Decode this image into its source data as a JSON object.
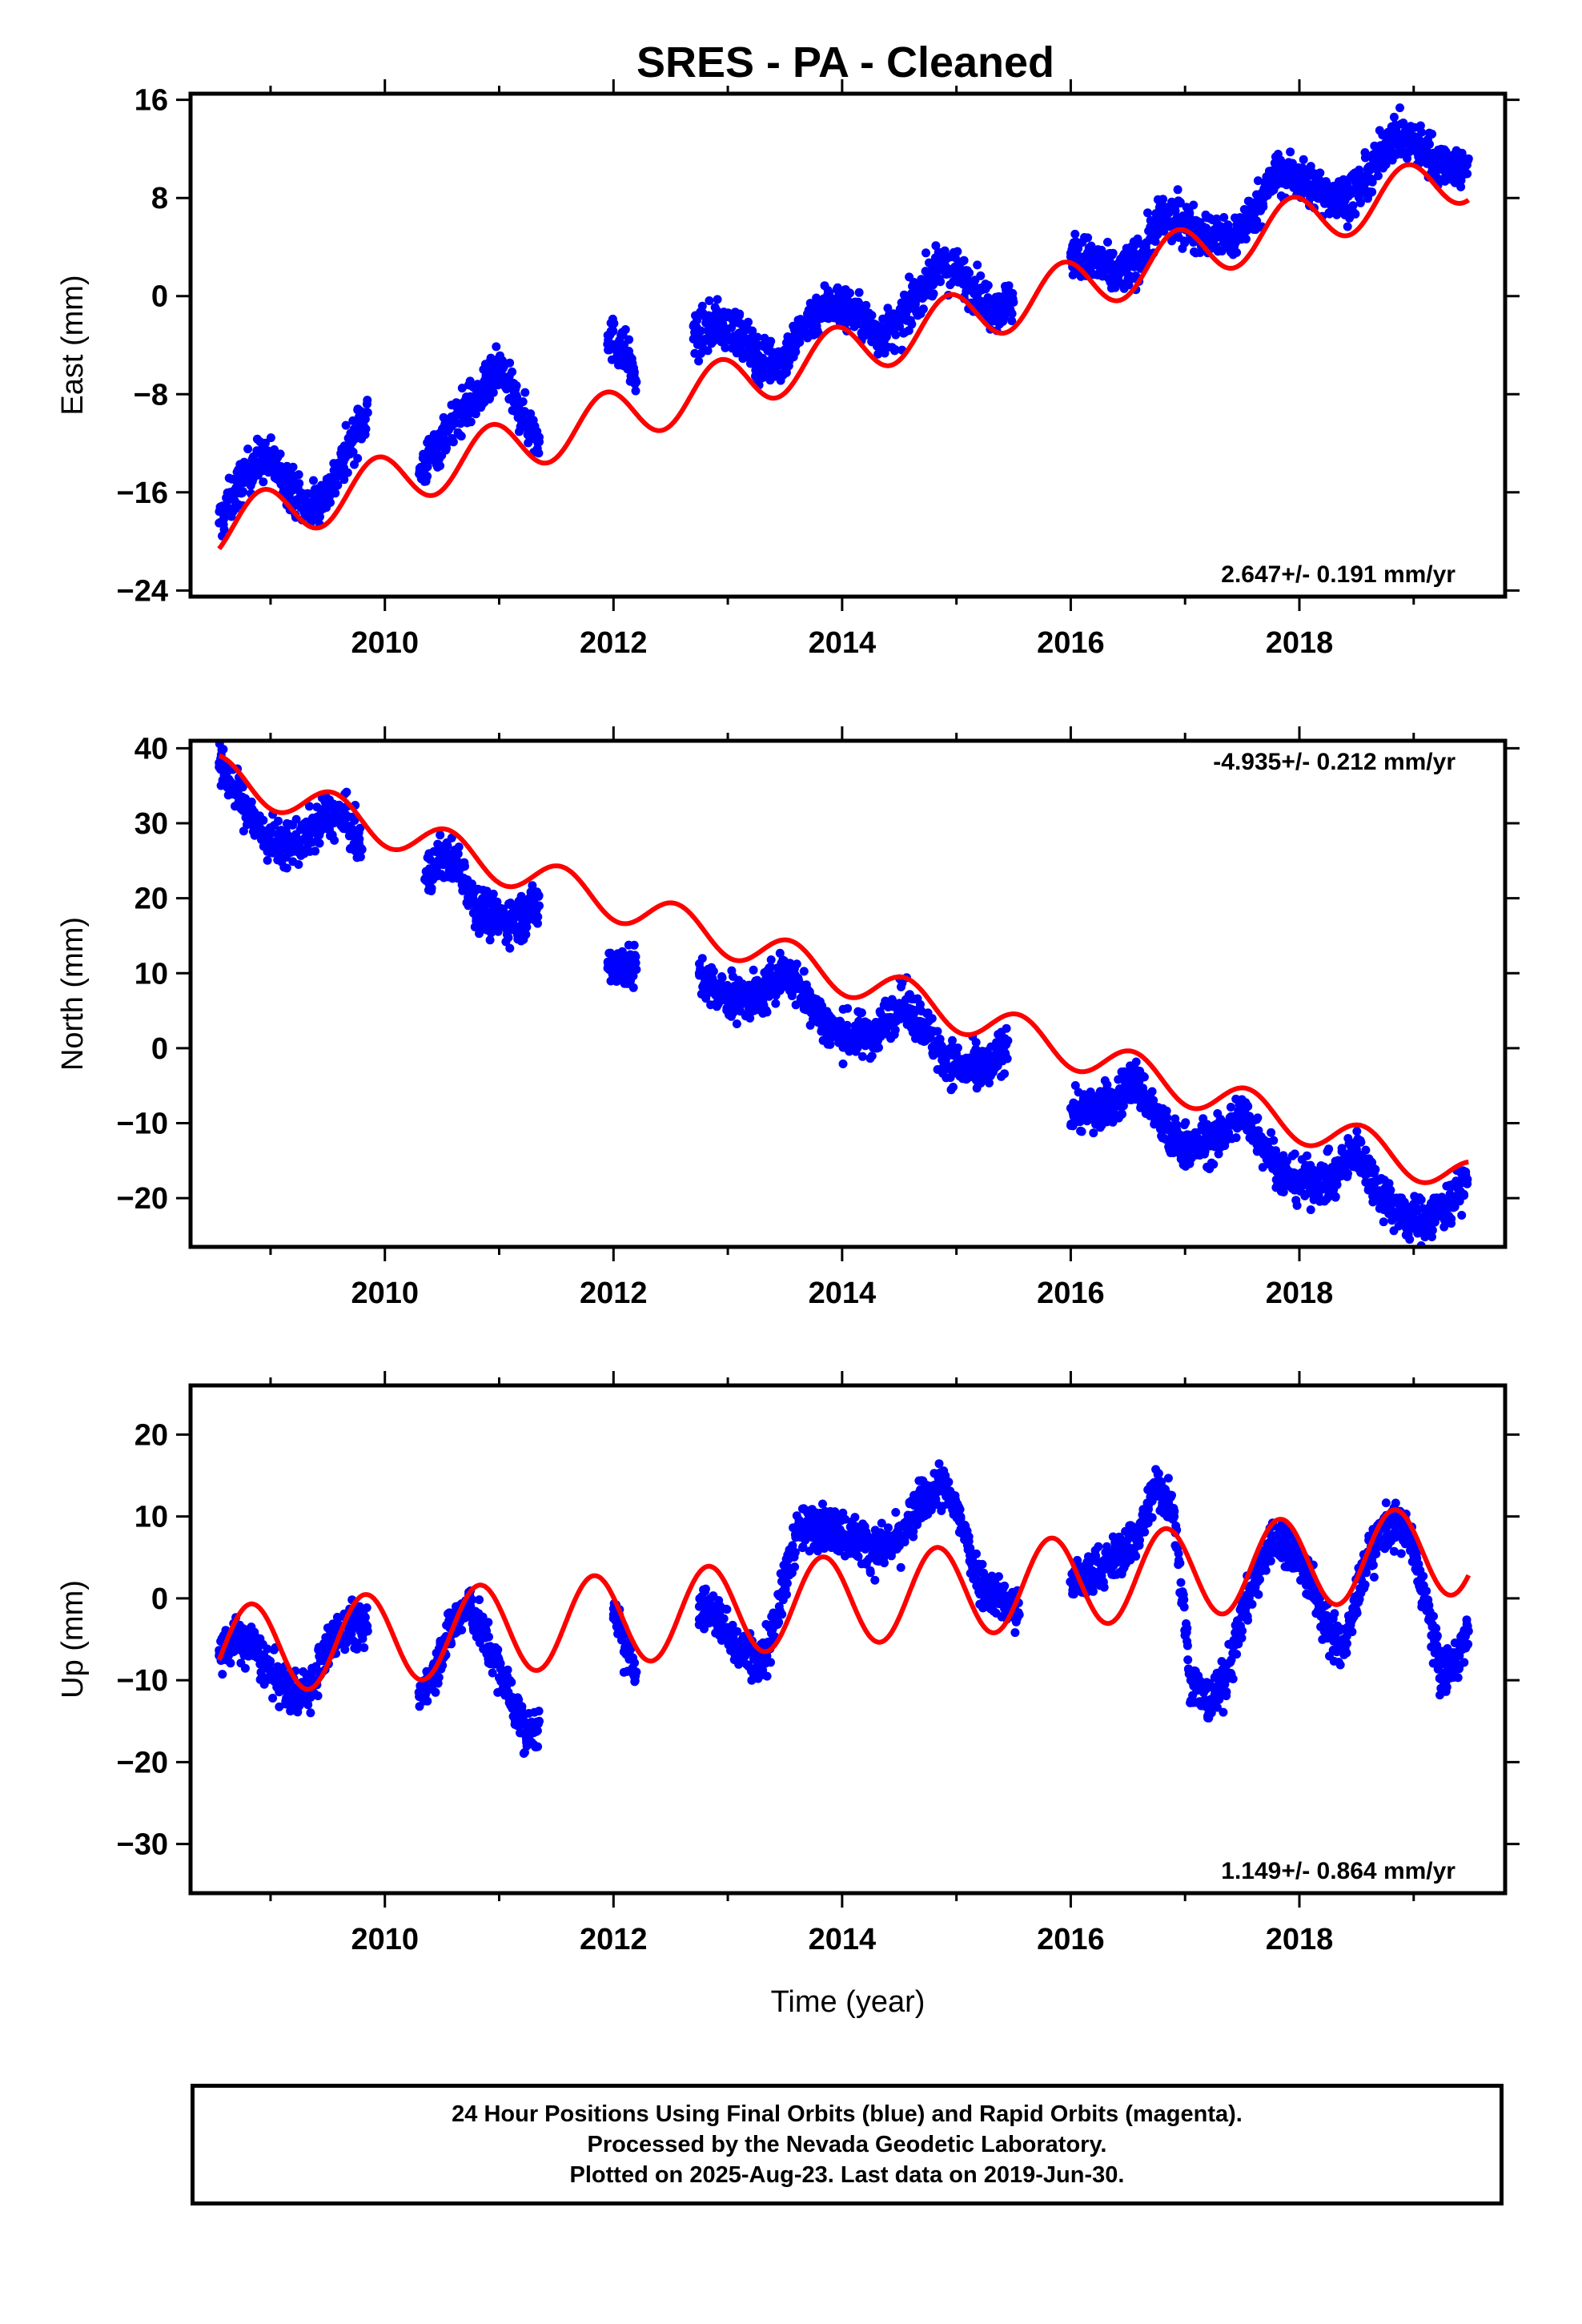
{
  "title": "SRES  - PA - Cleaned",
  "colors": {
    "data": "#0000ff",
    "model": "#ff0000",
    "axis": "#000000",
    "background": "#ffffff"
  },
  "chart_data": [
    {
      "type": "scatter",
      "ylabel": "East (mm)",
      "xlim": [
        2008.3,
        2019.8
      ],
      "ylim": [
        -24.5,
        16.5
      ],
      "yticks": [
        16,
        8,
        0,
        -8,
        -16,
        -24
      ],
      "ytick_labels": [
        "16",
        "8",
        "0",
        "−8",
        "−16",
        "−24"
      ],
      "xticks": [
        2010,
        2012,
        2014,
        2016,
        2018
      ],
      "xtick_labels": [
        "2010",
        "2012",
        "2014",
        "2016",
        "2018"
      ],
      "rate": "2.647+/- 0.191 mm/yr",
      "rate_position": "bottom-right",
      "model": {
        "slope": 2.647,
        "intercept": -19.0,
        "t0": 2008.55,
        "annual_amp": 2.2,
        "annual_peak": 2008.93
      },
      "series": [
        {
          "values": [
            [
              2008.55,
              -18.5
            ],
            [
              2008.62,
              -17.2
            ],
            [
              2008.72,
              -15.5
            ],
            [
              2008.85,
              -13.8
            ],
            [
              2008.95,
              -13.2
            ],
            [
              2009.05,
              -14.0
            ],
            [
              2009.2,
              -15.8
            ],
            [
              2009.3,
              -17.2
            ],
            [
              2009.42,
              -16.8
            ],
            [
              2009.55,
              -15.2
            ],
            [
              2009.68,
              -12.5
            ],
            [
              2009.78,
              -10.5
            ],
            [
              2009.85,
              -9.5
            ],
            [
              2010.3,
              -14.5
            ],
            [
              2010.4,
              -13.0
            ],
            [
              2010.55,
              -11.0
            ],
            [
              2010.7,
              -9.2
            ],
            [
              2010.85,
              -8.0
            ],
            [
              2011.0,
              -6.0
            ],
            [
              2011.25,
              -10.5
            ],
            [
              2011.35,
              -11.5
            ],
            [
              2011.95,
              -3.2
            ],
            [
              2012.1,
              -4.5
            ],
            [
              2012.2,
              -7.0
            ],
            [
              2012.7,
              -3.5
            ],
            [
              2012.9,
              -2.2
            ],
            [
              2013.1,
              -3.0
            ],
            [
              2013.3,
              -5.5
            ],
            [
              2013.5,
              -5.0
            ],
            [
              2013.7,
              -2.0
            ],
            [
              2013.9,
              -0.5
            ],
            [
              2014.1,
              -1.2
            ],
            [
              2014.3,
              -3.2
            ],
            [
              2014.5,
              -2.5
            ],
            [
              2014.7,
              0.8
            ],
            [
              2014.9,
              2.5
            ],
            [
              2015.1,
              1.2
            ],
            [
              2015.3,
              -0.8
            ],
            [
              2015.5,
              -0.5
            ],
            [
              2016.0,
              3.5
            ],
            [
              2016.2,
              2.8
            ],
            [
              2016.4,
              1.8
            ],
            [
              2016.6,
              3.0
            ],
            [
              2016.8,
              6.5
            ],
            [
              2017.0,
              6.0
            ],
            [
              2017.2,
              5.0
            ],
            [
              2017.4,
              4.5
            ],
            [
              2017.6,
              6.8
            ],
            [
              2017.8,
              10.0
            ],
            [
              2018.0,
              9.5
            ],
            [
              2018.2,
              8.5
            ],
            [
              2018.4,
              7.8
            ],
            [
              2018.6,
              9.5
            ],
            [
              2018.8,
              13.0
            ],
            [
              2019.0,
              12.5
            ],
            [
              2019.2,
              11.0
            ],
            [
              2019.4,
              10.5
            ],
            [
              2019.48,
              11.2
            ]
          ]
        }
      ]
    },
    {
      "type": "scatter",
      "ylabel": "North (mm)",
      "xlim": [
        2008.3,
        2019.8
      ],
      "ylim": [
        -26.5,
        41
      ],
      "yticks": [
        40,
        30,
        20,
        10,
        0,
        -10,
        -20
      ],
      "ytick_labels": [
        "40",
        "30",
        "20",
        "10",
        "0",
        "−10",
        "−20"
      ],
      "xticks": [
        2010,
        2012,
        2014,
        2016,
        2018
      ],
      "xtick_labels": [
        "2010",
        "2012",
        "2014",
        "2016",
        "2018"
      ],
      "rate": "-4.935+/- 0.212 mm/yr",
      "rate_position": "top-right",
      "model": {
        "slope": -4.935,
        "intercept": 36.5,
        "t0": 2008.55,
        "annual_amp": 2.5,
        "annual_peak": 2009.55
      },
      "series": [
        {
          "values": [
            [
              2008.55,
              37.5
            ],
            [
              2008.65,
              35.5
            ],
            [
              2008.8,
              31.5
            ],
            [
              2008.95,
              28.0
            ],
            [
              2009.1,
              27.0
            ],
            [
              2009.3,
              28.0
            ],
            [
              2009.5,
              31.0
            ],
            [
              2009.65,
              30.5
            ],
            [
              2009.8,
              26.5
            ],
            [
              2010.35,
              22.5
            ],
            [
              2010.5,
              25.5
            ],
            [
              2010.65,
              24.5
            ],
            [
              2010.8,
              19.0
            ],
            [
              2011.0,
              17.0
            ],
            [
              2011.2,
              17.5
            ],
            [
              2011.35,
              19.0
            ],
            [
              2011.95,
              11.5
            ],
            [
              2012.1,
              11.0
            ],
            [
              2012.2,
              10.5
            ],
            [
              2012.75,
              10.0
            ],
            [
              2012.9,
              7.5
            ],
            [
              2013.1,
              6.5
            ],
            [
              2013.3,
              7.0
            ],
            [
              2013.5,
              10.5
            ],
            [
              2013.7,
              6.5
            ],
            [
              2013.9,
              2.5
            ],
            [
              2014.1,
              1.5
            ],
            [
              2014.3,
              2.0
            ],
            [
              2014.5,
              6.0
            ],
            [
              2014.7,
              3.5
            ],
            [
              2014.9,
              -1.5
            ],
            [
              2015.1,
              -3.0
            ],
            [
              2015.3,
              -2.5
            ],
            [
              2015.45,
              1.0
            ],
            [
              2016.0,
              -8.0
            ],
            [
              2016.2,
              -8.5
            ],
            [
              2016.4,
              -7.0
            ],
            [
              2016.55,
              -4.0
            ],
            [
              2016.75,
              -9.0
            ],
            [
              2016.9,
              -12.5
            ],
            [
              2017.1,
              -13.0
            ],
            [
              2017.3,
              -12.0
            ],
            [
              2017.5,
              -8.5
            ],
            [
              2017.7,
              -13.0
            ],
            [
              2017.9,
              -17.5
            ],
            [
              2018.1,
              -18.0
            ],
            [
              2018.3,
              -17.5
            ],
            [
              2018.5,
              -13.5
            ],
            [
              2018.7,
              -19.0
            ],
            [
              2018.9,
              -22.5
            ],
            [
              2019.1,
              -23.0
            ],
            [
              2019.3,
              -21.0
            ],
            [
              2019.47,
              -17.5
            ]
          ]
        }
      ]
    },
    {
      "type": "scatter",
      "ylabel": "Up (mm)",
      "xlabel": "Time (year)",
      "xlim": [
        2008.3,
        2019.8
      ],
      "ylim": [
        -36,
        26
      ],
      "yticks": [
        20,
        10,
        0,
        -10,
        -20,
        -30
      ],
      "ytick_labels": [
        "20",
        "10",
        "0",
        "−10",
        "−20",
        "−30"
      ],
      "xticks": [
        2010,
        2012,
        2014,
        2016,
        2018
      ],
      "xtick_labels": [
        "2010",
        "2012",
        "2014",
        "2016",
        "2018"
      ],
      "rate": "1.149+/- 0.864 mm/yr",
      "rate_position": "bottom-right",
      "model": {
        "slope": 1.149,
        "intercept": -6.5,
        "t0": 2008.55,
        "annual_amp": 5.5,
        "annual_peak": 2008.83
      },
      "series": [
        {
          "values": [
            [
              2008.55,
              -7.0
            ],
            [
              2008.7,
              -5.0
            ],
            [
              2008.85,
              -6.0
            ],
            [
              2009.0,
              -9.0
            ],
            [
              2009.2,
              -12.0
            ],
            [
              2009.35,
              -11.0
            ],
            [
              2009.5,
              -6.0
            ],
            [
              2009.7,
              -3.0
            ],
            [
              2009.85,
              -4.0
            ],
            [
              2010.3,
              -12.0
            ],
            [
              2010.45,
              -8.0
            ],
            [
              2010.6,
              -3.0
            ],
            [
              2010.75,
              -1.0
            ],
            [
              2011.1,
              -12.0
            ],
            [
              2011.25,
              -17.0
            ],
            [
              2011.35,
              -15.0
            ],
            [
              2012.0,
              -2.0
            ],
            [
              2012.1,
              -6.0
            ],
            [
              2012.2,
              -9.0
            ],
            [
              2012.75,
              -1.0
            ],
            [
              2012.9,
              -2.0
            ],
            [
              2013.1,
              -6.0
            ],
            [
              2013.3,
              -8.0
            ],
            [
              2013.45,
              -1.0
            ],
            [
              2013.6,
              8.0
            ],
            [
              2013.8,
              9.0
            ],
            [
              2014.0,
              8.0
            ],
            [
              2014.3,
              6.0
            ],
            [
              2014.5,
              7.0
            ],
            [
              2014.7,
              12.0
            ],
            [
              2014.85,
              14.0
            ],
            [
              2015.0,
              11.0
            ],
            [
              2015.2,
              2.0
            ],
            [
              2015.4,
              0.0
            ],
            [
              2015.55,
              -2.0
            ],
            [
              2016.0,
              2.0
            ],
            [
              2016.2,
              3.0
            ],
            [
              2016.4,
              5.0
            ],
            [
              2016.6,
              8.0
            ],
            [
              2016.75,
              14.0
            ],
            [
              2016.9,
              11.0
            ],
            [
              2017.05,
              -10.0
            ],
            [
              2017.2,
              -13.0
            ],
            [
              2017.35,
              -10.0
            ],
            [
              2017.55,
              0.0
            ],
            [
              2017.75,
              7.0
            ],
            [
              2017.95,
              6.0
            ],
            [
              2018.1,
              2.0
            ],
            [
              2018.25,
              -4.0
            ],
            [
              2018.4,
              -6.0
            ],
            [
              2018.55,
              3.0
            ],
            [
              2018.75,
              9.0
            ],
            [
              2018.95,
              8.0
            ],
            [
              2019.1,
              0.0
            ],
            [
              2019.25,
              -10.0
            ],
            [
              2019.4,
              -7.0
            ],
            [
              2019.48,
              -4.0
            ]
          ]
        }
      ]
    }
  ],
  "footer": {
    "line1": "24 Hour Positions Using Final Orbits (blue) and Rapid Orbits (magenta).",
    "line2": "Processed by the Nevada Geodetic Laboratory.",
    "line3": "Plotted on 2025-Aug-23. Last data on 2019-Jun-30."
  }
}
